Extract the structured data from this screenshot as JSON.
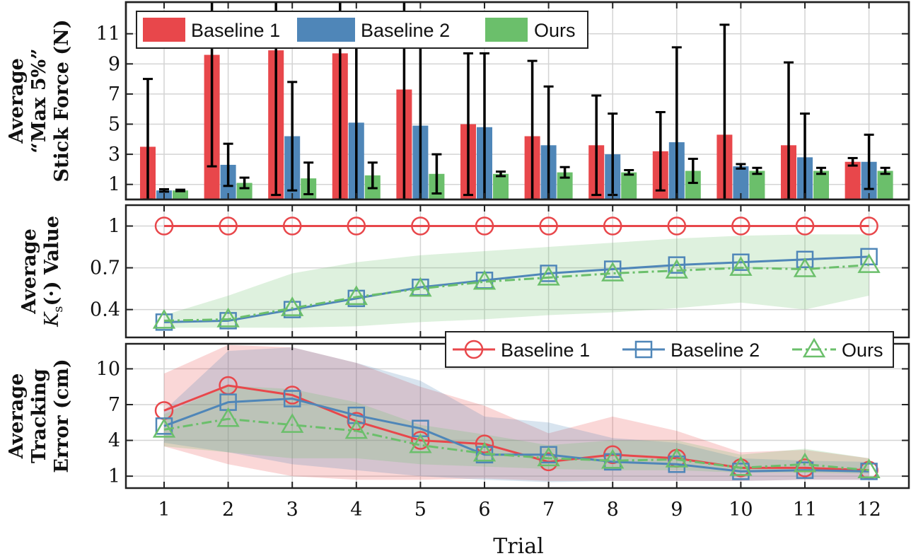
{
  "colors": {
    "baseline1": "#E8474B",
    "baseline2": "#4F86B8",
    "ours": "#6BBF6B"
  },
  "legend_labels": [
    "Baseline 1",
    "Baseline 2",
    "Ours"
  ],
  "chart_data": [
    {
      "type": "bar",
      "name": "stick-force",
      "ylabel_lines": [
        "Average",
        "“Max 5%”",
        "Stick Force (N)"
      ],
      "categories": [
        "1",
        "2",
        "3",
        "4",
        "5",
        "6",
        "7",
        "8",
        "9",
        "10",
        "11",
        "12"
      ],
      "ylim": [
        0,
        13.1
      ],
      "yticks": [
        1,
        3,
        5,
        7,
        9,
        11
      ],
      "series": [
        {
          "name": "Baseline 1",
          "values": [
            3.5,
            9.6,
            9.9,
            9.7,
            7.3,
            5.0,
            4.2,
            3.6,
            3.2,
            4.3,
            3.6,
            2.5
          ],
          "err": [
            4.5,
            7.4,
            9.6,
            9.8,
            7.3,
            4.7,
            5.0,
            3.3,
            2.6,
            7.3,
            5.5,
            0.25
          ]
        },
        {
          "name": "Baseline 2",
          "values": [
            0.6,
            2.3,
            4.2,
            5.1,
            4.9,
            4.8,
            3.6,
            3.0,
            3.8,
            2.2,
            2.8,
            2.5
          ],
          "err": [
            0.08,
            1.4,
            3.6,
            5.4,
            5.4,
            4.9,
            3.9,
            2.7,
            6.3,
            0.15,
            2.9,
            1.8
          ]
        },
        {
          "name": "Ours",
          "values": [
            0.6,
            1.1,
            1.4,
            1.6,
            1.7,
            1.7,
            1.8,
            1.8,
            1.9,
            1.9,
            1.9,
            1.9
          ],
          "err": [
            0.05,
            0.35,
            1.05,
            0.85,
            1.3,
            0.15,
            0.35,
            0.15,
            0.8,
            0.2,
            0.2,
            0.2
          ]
        }
      ]
    },
    {
      "type": "line",
      "name": "ks-value",
      "ylabel_lines": [
        "Average",
        "Ks(·) Value"
      ],
      "x": [
        1,
        2,
        3,
        4,
        5,
        6,
        7,
        8,
        9,
        10,
        11,
        12
      ],
      "ylim": [
        0.2,
        1.15
      ],
      "yticks": [
        0.4,
        0.7,
        1
      ],
      "ytick_labels": [
        "0.4",
        "0.7",
        "1"
      ],
      "series": [
        {
          "name": "Baseline 1",
          "values": [
            1,
            1,
            1,
            1,
            1,
            1,
            1,
            1,
            1,
            1,
            1,
            1
          ]
        },
        {
          "name": "Baseline 2",
          "values": [
            0.31,
            0.32,
            0.4,
            0.48,
            0.56,
            0.61,
            0.66,
            0.69,
            0.72,
            0.74,
            0.76,
            0.78
          ]
        },
        {
          "name": "Ours",
          "values": [
            0.32,
            0.33,
            0.41,
            0.49,
            0.55,
            0.6,
            0.63,
            0.66,
            0.68,
            0.7,
            0.69,
            0.72
          ],
          "band_low": [
            0.27,
            0.27,
            0.27,
            0.28,
            0.31,
            0.33,
            0.36,
            0.38,
            0.41,
            0.45,
            0.4,
            0.5
          ],
          "band_high": [
            0.36,
            0.5,
            0.66,
            0.74,
            0.79,
            0.82,
            0.85,
            0.88,
            0.91,
            0.93,
            0.94,
            0.94
          ]
        }
      ]
    },
    {
      "type": "line",
      "name": "tracking-error",
      "ylabel_lines": [
        "Average",
        "Tracking",
        "Error (cm)"
      ],
      "x": [
        1,
        2,
        3,
        4,
        5,
        6,
        7,
        8,
        9,
        10,
        11,
        12
      ],
      "ylim": [
        0,
        12.1
      ],
      "yticks": [
        1,
        4,
        7,
        10
      ],
      "series": [
        {
          "name": "Baseline 1",
          "values": [
            6.5,
            8.6,
            7.8,
            5.6,
            4.0,
            3.7,
            2.2,
            2.8,
            2.5,
            1.7,
            1.7,
            1.5
          ],
          "band_low": [
            3.5,
            2.0,
            1.0,
            0.7,
            0.7,
            0.8,
            0.6,
            0.6,
            0.6,
            0.6,
            0.7,
            0.7
          ],
          "band_high": [
            9.6,
            12.0,
            11.8,
            10.5,
            8.5,
            6.9,
            4.6,
            6.0,
            4.8,
            3.0,
            3.2,
            2.5
          ]
        },
        {
          "name": "Baseline 2",
          "values": [
            5.2,
            7.2,
            7.5,
            6.1,
            5.0,
            2.8,
            2.8,
            2.2,
            2.0,
            1.4,
            1.5,
            1.4
          ],
          "band_low": [
            3.8,
            3.0,
            2.0,
            1.5,
            1.0,
            0.7,
            0.5,
            0.6,
            0.6,
            0.6,
            0.7,
            0.7
          ],
          "band_high": [
            6.5,
            11.5,
            11.8,
            10.5,
            9.0,
            6.0,
            5.5,
            4.2,
            3.8,
            2.5,
            2.3,
            2.2
          ]
        },
        {
          "name": "Ours",
          "values": [
            4.9,
            5.8,
            5.3,
            4.8,
            3.6,
            2.9,
            2.5,
            2.3,
            2.4,
            1.7,
            2.0,
            1.5
          ],
          "band_low": [
            3.5,
            3.0,
            2.5,
            2.5,
            2.0,
            1.8,
            1.6,
            1.5,
            1.5,
            1.3,
            1.3,
            1.2
          ],
          "band_high": [
            6.2,
            8.6,
            8.3,
            7.2,
            5.3,
            4.5,
            3.6,
            4.0,
            4.0,
            2.8,
            3.3,
            2.5
          ]
        }
      ]
    }
  ],
  "xaxis": {
    "label": "Trial"
  }
}
